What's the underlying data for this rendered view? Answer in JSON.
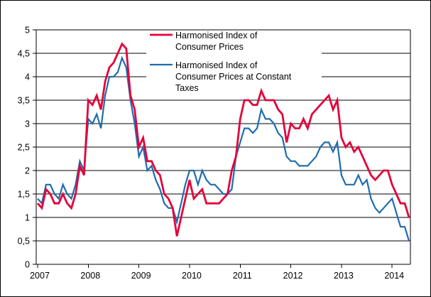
{
  "chart_data": {
    "type": "line",
    "title": "",
    "x_start_label": "2007",
    "x_end_label": "2014",
    "x_tick_labels": [
      "2007",
      "2008",
      "2009",
      "2010",
      "2011",
      "2012",
      "2013",
      "2014"
    ],
    "y_tick_labels": [
      "0",
      "0,5",
      "1",
      "1,5",
      "2",
      "2,5",
      "3",
      "3,5",
      "4",
      "4,5",
      "5"
    ],
    "ylim": [
      0,
      5
    ],
    "y_grid_step": 0.5,
    "grid": "horizontal gridlines every 0.5, black",
    "frame": "left axis, bottom axis, right border, top gridline at 5",
    "legend_position": "top-center, white background, no border",
    "months_span": "January 2007 - May 2014, monthly points, 89 values per series",
    "series": [
      {
        "name": "Harmonised Index of Consumer Prices",
        "color": "#e3033a",
        "stroke_width": 2.8,
        "values": [
          1.3,
          1.2,
          1.6,
          1.5,
          1.3,
          1.3,
          1.5,
          1.3,
          1.2,
          1.5,
          2.1,
          1.9,
          3.5,
          3.4,
          3.6,
          3.3,
          3.9,
          4.2,
          4.3,
          4.5,
          4.7,
          4.6,
          3.6,
          3.3,
          2.5,
          2.7,
          2.2,
          2.2,
          2.0,
          1.9,
          1.5,
          1.4,
          1.2,
          0.6,
          1.0,
          1.4,
          1.8,
          1.4,
          1.5,
          1.6,
          1.3,
          1.3,
          1.3,
          1.3,
          1.4,
          1.5,
          2.0,
          2.3,
          3.1,
          3.5,
          3.5,
          3.4,
          3.4,
          3.7,
          3.5,
          3.5,
          3.5,
          3.3,
          3.2,
          2.6,
          3.0,
          2.9,
          2.9,
          3.1,
          2.9,
          3.2,
          3.3,
          3.4,
          3.5,
          3.6,
          3.3,
          3.5,
          2.7,
          2.5,
          2.6,
          2.4,
          2.5,
          2.3,
          2.1,
          1.9,
          1.8,
          1.9,
          2.0,
          2.0,
          1.7,
          1.5,
          1.3,
          1.3,
          1.0
        ]
      },
      {
        "name": "Harmonised Index of Consumer Prices at Constant Taxes",
        "color": "#1e6cb0",
        "stroke_width": 2.2,
        "values": [
          1.4,
          1.3,
          1.7,
          1.7,
          1.5,
          1.4,
          1.7,
          1.5,
          1.4,
          1.7,
          2.2,
          2.0,
          3.1,
          3.0,
          3.2,
          2.9,
          3.6,
          4.0,
          4.0,
          4.1,
          4.4,
          4.2,
          3.5,
          3.0,
          2.3,
          2.5,
          2.0,
          2.1,
          1.8,
          1.6,
          1.3,
          1.2,
          1.2,
          0.9,
          1.3,
          1.7,
          2.0,
          2.0,
          1.7,
          2.0,
          1.8,
          1.7,
          1.7,
          1.6,
          1.5,
          1.5,
          1.6,
          2.3,
          2.6,
          2.9,
          2.9,
          2.8,
          2.9,
          3.3,
          3.1,
          3.1,
          3.0,
          2.8,
          2.7,
          2.3,
          2.2,
          2.2,
          2.1,
          2.1,
          2.1,
          2.2,
          2.3,
          2.5,
          2.6,
          2.6,
          2.4,
          2.6,
          1.9,
          1.7,
          1.7,
          1.7,
          1.9,
          1.7,
          1.8,
          1.4,
          1.2,
          1.1,
          1.2,
          1.3,
          1.4,
          1.1,
          0.8,
          0.8,
          0.5
        ]
      }
    ],
    "legend": {
      "entries": [
        {
          "series_index": 0,
          "label_lines": [
            "Harmonised Index of",
            "Consumer Prices"
          ]
        },
        {
          "series_index": 1,
          "label_lines": [
            "Harmonised Index of",
            "Consumer Prices at Constant",
            "Taxes"
          ]
        }
      ]
    }
  }
}
